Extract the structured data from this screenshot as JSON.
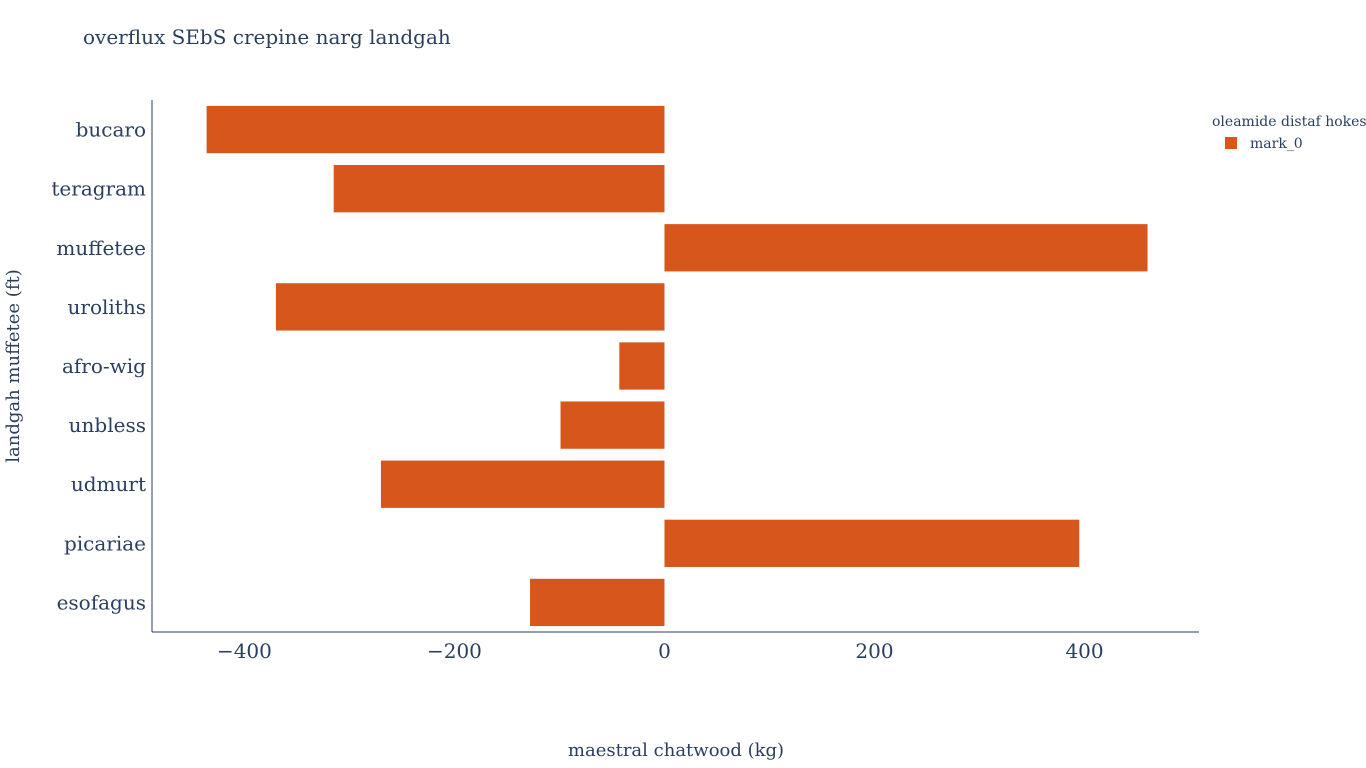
{
  "chart_data": {
    "type": "bar",
    "orientation": "horizontal",
    "title": "overflux SEbS crepine narg landgah",
    "xlabel": "maestral chatwood (kg)",
    "ylabel": "landgah muffetee (ft)",
    "categories": [
      "bucaro",
      "teragram",
      "muffetee",
      "uroliths",
      "afro-wig",
      "unbless",
      "udmurt",
      "picariae",
      "esofagus"
    ],
    "series": [
      {
        "name": "mark_0",
        "color": "#d6561c",
        "values": [
          -436,
          -315,
          460,
          -370,
          -43,
          -99,
          -270,
          395,
          -128
        ]
      }
    ],
    "xlim": [
      -488,
      509
    ],
    "xticks": [
      -400,
      -200,
      0,
      200,
      400
    ],
    "xtick_labels": [
      "−400",
      "−200",
      "0",
      "200",
      "400"
    ],
    "grid": false,
    "legend": {
      "title": "oleamide distaf hokes",
      "placement": "top-right"
    }
  }
}
